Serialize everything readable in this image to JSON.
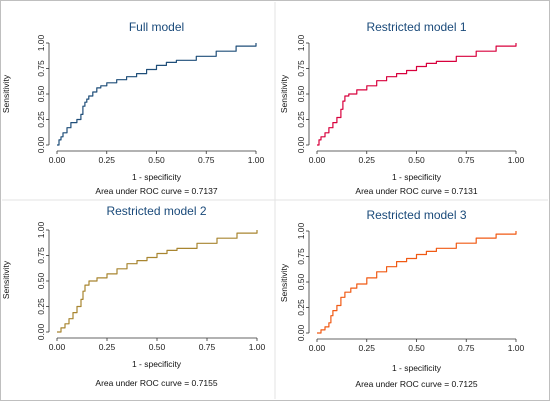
{
  "chart_data": [
    {
      "type": "line",
      "title": "Full model",
      "title_color": "#1a4a7a",
      "line_color": "#1f4e79",
      "xlabel": "1 - specificity",
      "ylabel": "Sensitivity",
      "xlim": [
        0,
        1
      ],
      "ylim": [
        0,
        1
      ],
      "xticks": [
        "0.00",
        "0.25",
        "0.50",
        "0.75",
        "1.00"
      ],
      "yticks": [
        "0.00",
        "0.25",
        "0.50",
        "0.75",
        "1.00"
      ],
      "auc_text": "Area under ROC curve = 0.7137",
      "series": [
        {
          "x": [
            0,
            0.01,
            0.02,
            0.03,
            0.05,
            0.07,
            0.1,
            0.12,
            0.13,
            0.14,
            0.15,
            0.16,
            0.18,
            0.2,
            0.22,
            0.25,
            0.3,
            0.35,
            0.4,
            0.45,
            0.5,
            0.55,
            0.6,
            0.7,
            0.8,
            0.9,
            1.0
          ],
          "y": [
            0,
            0.05,
            0.08,
            0.12,
            0.17,
            0.22,
            0.25,
            0.3,
            0.38,
            0.42,
            0.45,
            0.48,
            0.52,
            0.56,
            0.58,
            0.61,
            0.64,
            0.67,
            0.7,
            0.74,
            0.78,
            0.81,
            0.83,
            0.87,
            0.92,
            0.97,
            1.0
          ]
        }
      ]
    },
    {
      "type": "line",
      "title": "Restricted model 1",
      "title_color": "#1a4a7a",
      "line_color": "#d8003c",
      "xlabel": "1 - specificity",
      "ylabel": "Sensitivity",
      "xlim": [
        0,
        1
      ],
      "ylim": [
        0,
        1
      ],
      "xticks": [
        "0.00",
        "0.25",
        "0.50",
        "0.75",
        "1.00"
      ],
      "yticks": [
        "0.00",
        "0.25",
        "0.50",
        "0.75",
        "1.00"
      ],
      "auc_text": "Area under ROC curve = 0.7131",
      "series": [
        {
          "x": [
            0,
            0.01,
            0.02,
            0.04,
            0.06,
            0.08,
            0.1,
            0.12,
            0.13,
            0.14,
            0.16,
            0.2,
            0.25,
            0.3,
            0.35,
            0.4,
            0.45,
            0.5,
            0.55,
            0.6,
            0.7,
            0.8,
            0.9,
            1.0
          ],
          "y": [
            0,
            0.05,
            0.08,
            0.12,
            0.17,
            0.22,
            0.27,
            0.35,
            0.43,
            0.48,
            0.5,
            0.54,
            0.58,
            0.63,
            0.67,
            0.7,
            0.73,
            0.77,
            0.8,
            0.82,
            0.87,
            0.92,
            0.97,
            1.0
          ]
        }
      ]
    },
    {
      "type": "line",
      "title": "Restricted model 2",
      "title_color": "#1a4a7a",
      "line_color": "#a88530",
      "xlabel": "1 - specificity",
      "ylabel": "Sensitivity",
      "xlim": [
        0,
        1
      ],
      "ylim": [
        0,
        1
      ],
      "xticks": [
        "0.00",
        "0.25",
        "0.50",
        "0.75",
        "1.00"
      ],
      "yticks": [
        "0.00",
        "0.25",
        "0.50",
        "0.75",
        "1.00"
      ],
      "auc_text": "Area under ROC curve = 0.7155",
      "series": [
        {
          "x": [
            0,
            0.02,
            0.04,
            0.06,
            0.08,
            0.1,
            0.12,
            0.13,
            0.14,
            0.16,
            0.2,
            0.25,
            0.3,
            0.35,
            0.4,
            0.45,
            0.5,
            0.55,
            0.6,
            0.7,
            0.8,
            0.9,
            1.0
          ],
          "y": [
            0,
            0.04,
            0.08,
            0.13,
            0.19,
            0.25,
            0.32,
            0.4,
            0.46,
            0.5,
            0.53,
            0.57,
            0.62,
            0.67,
            0.7,
            0.73,
            0.77,
            0.8,
            0.82,
            0.87,
            0.92,
            0.97,
            1.0
          ]
        }
      ]
    },
    {
      "type": "line",
      "title": "Restricted model 3",
      "title_color": "#1a4a7a",
      "line_color": "#f05a14",
      "xlabel": "1 - specificity",
      "ylabel": "Sensitivity",
      "xlim": [
        0,
        1
      ],
      "ylim": [
        0,
        1
      ],
      "xticks": [
        "0.00",
        "0.25",
        "0.50",
        "0.75",
        "1.00"
      ],
      "yticks": [
        "0.00",
        "0.25",
        "0.50",
        "0.75",
        "1.00"
      ],
      "auc_text": "Area under ROC curve = 0.7125",
      "series": [
        {
          "x": [
            0,
            0.02,
            0.04,
            0.06,
            0.07,
            0.08,
            0.1,
            0.12,
            0.14,
            0.17,
            0.2,
            0.25,
            0.3,
            0.35,
            0.4,
            0.45,
            0.5,
            0.55,
            0.6,
            0.7,
            0.8,
            0.9,
            1.0
          ],
          "y": [
            0,
            0.03,
            0.06,
            0.1,
            0.17,
            0.22,
            0.27,
            0.35,
            0.4,
            0.44,
            0.48,
            0.54,
            0.6,
            0.65,
            0.7,
            0.73,
            0.77,
            0.8,
            0.83,
            0.88,
            0.93,
            0.97,
            1.0
          ]
        }
      ]
    }
  ]
}
